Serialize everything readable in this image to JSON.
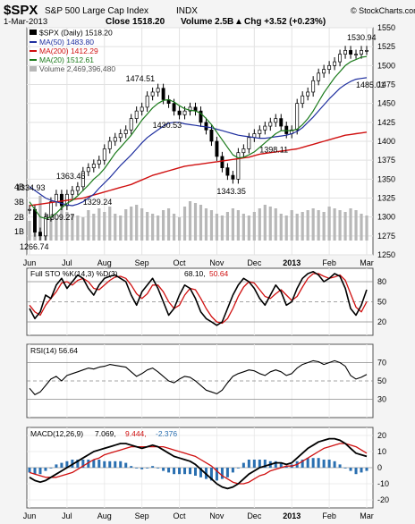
{
  "header": {
    "symbol": "$SPX",
    "name": "S&P 500 Large Cap Index",
    "exchange": "INDX",
    "date": "1-Mar-2013",
    "close": "Close 1518.20",
    "volume": "Volume 2.5B",
    "chg": "Chg +3.52 (+0.23%)",
    "chg_arrow": "▲",
    "watermark": "© StockCharts.com"
  },
  "legend": {
    "price": "$SPX (Daily) 1518.20",
    "ma50": "MA(50) 1483.80",
    "ma200": "MA(200) 1412.29",
    "ma20": "MA(20) 1512.61",
    "volume": "Volume 2,469,396,480"
  },
  "panels": {
    "sto_label": "Full STO %K(14,3) %D(3)",
    "sto_k": "68.10,",
    "sto_d": "50.64",
    "rsi_label": "RSI(14) 56.64",
    "macd_label": "MACD(12,26,9)",
    "macd_v": "7.069,",
    "macd_s": "9.444,",
    "macd_h": "-2.376"
  },
  "colors": {
    "price": "#000000",
    "ma50": "#1f2f9f",
    "ma200": "#d01010",
    "ma20": "#1a7a1a",
    "volume": "#b8b8b8",
    "sto_k": "#000000",
    "sto_d": "#d01010",
    "macd_hist": "#2a6fb0",
    "gap_up": "#2a6fb0"
  },
  "chart_data": [
    {
      "type": "line",
      "title": "$SPX (Daily) 1518.20",
      "x_ticks": [
        "Jun",
        "Jul",
        "Aug",
        "Sep",
        "Oct",
        "Nov",
        "Dec",
        "2013",
        "Feb",
        "Mar"
      ],
      "ylim": [
        1250,
        1550
      ],
      "y_ticks": [
        1250,
        1275,
        1300,
        1325,
        1350,
        1375,
        1400,
        1425,
        1450,
        1475,
        1500,
        1525,
        1550
      ],
      "volume_ticks": [
        "1B",
        "2B",
        "3B",
        "4B"
      ],
      "annotations": [
        {
          "text": "1266.74",
          "x": "Jun",
          "value": 1266.74
        },
        {
          "text": "1334.93",
          "x": "Jun",
          "value": 1334.93
        },
        {
          "text": "1309.27",
          "x": "Jul",
          "value": 1309.27
        },
        {
          "text": "1363.46",
          "x": "Jul",
          "value": 1363.46
        },
        {
          "text": "1329.24",
          "x": "Jul",
          "value": 1329.24
        },
        {
          "text": "1474.51",
          "x": "Sep",
          "value": 1474.51
        },
        {
          "text": "1430.53",
          "x": "Oct",
          "value": 1430.53
        },
        {
          "text": "1343.35",
          "x": "Nov",
          "value": 1343.35
        },
        {
          "text": "1398.11",
          "x": "Dec",
          "value": 1398.11
        },
        {
          "text": "1530.94",
          "x": "Feb",
          "value": 1530.94
        },
        {
          "text": "1485.01",
          "x": "Feb",
          "value": 1485.01
        }
      ],
      "series": [
        {
          "name": "$SPX",
          "values": [
            1310,
            1280,
            1275,
            1300,
            1320,
            1330,
            1315,
            1330,
            1335,
            1340,
            1360,
            1365,
            1370,
            1375,
            1390,
            1400,
            1405,
            1410,
            1415,
            1430,
            1440,
            1445,
            1460,
            1465,
            1470,
            1455,
            1450,
            1440,
            1435,
            1440,
            1445,
            1440,
            1425,
            1415,
            1400,
            1380,
            1365,
            1355,
            1350,
            1385,
            1390,
            1405,
            1410,
            1415,
            1420,
            1425,
            1430,
            1420,
            1410,
            1415,
            1450,
            1460,
            1465,
            1480,
            1490,
            1495,
            1500,
            1505,
            1515,
            1520,
            1515,
            1515,
            1520,
            1520
          ]
        },
        {
          "name": "MA(50)",
          "values": [
            1340,
            1335,
            1330,
            1325,
            1322,
            1320,
            1318,
            1316,
            1315,
            1317,
            1320,
            1325,
            1330,
            1338,
            1345,
            1352,
            1360,
            1368,
            1375,
            1382,
            1390,
            1398,
            1405,
            1410,
            1415,
            1420,
            1424,
            1425,
            1425,
            1423,
            1422,
            1421,
            1420,
            1419,
            1418,
            1416,
            1414,
            1412,
            1410,
            1408,
            1407,
            1406,
            1405,
            1404,
            1404,
            1405,
            1406,
            1407,
            1408,
            1410,
            1413,
            1418,
            1425,
            1432,
            1440,
            1448,
            1456,
            1463,
            1470,
            1475,
            1479,
            1482,
            1483,
            1484
          ]
        },
        {
          "name": "MA(200)",
          "values": [
            1315,
            1316,
            1317,
            1318,
            1319,
            1320,
            1321,
            1322,
            1323,
            1324,
            1325,
            1327,
            1329,
            1331,
            1333,
            1335,
            1337,
            1339,
            1341,
            1343,
            1346,
            1349,
            1352,
            1355,
            1357,
            1359,
            1361,
            1363,
            1365,
            1367,
            1368,
            1369,
            1370,
            1371,
            1372,
            1373,
            1374,
            1375,
            1376,
            1377,
            1378,
            1379,
            1381,
            1383,
            1384,
            1385,
            1386,
            1387,
            1388,
            1389,
            1390,
            1392,
            1394,
            1396,
            1398,
            1400,
            1402,
            1404,
            1406,
            1408,
            1409,
            1410,
            1411,
            1412
          ]
        },
        {
          "name": "MA(20)",
          "values": [
            1320,
            1310,
            1300,
            1298,
            1300,
            1305,
            1312,
            1318,
            1322,
            1328,
            1335,
            1342,
            1350,
            1356,
            1364,
            1374,
            1384,
            1392,
            1400,
            1408,
            1418,
            1428,
            1436,
            1444,
            1450,
            1454,
            1455,
            1452,
            1447,
            1443,
            1441,
            1440,
            1437,
            1430,
            1422,
            1412,
            1402,
            1392,
            1382,
            1378,
            1379,
            1382,
            1386,
            1392,
            1398,
            1404,
            1410,
            1414,
            1414,
            1414,
            1416,
            1422,
            1430,
            1440,
            1452,
            1464,
            1474,
            1484,
            1492,
            1500,
            1505,
            1508,
            1511,
            1512
          ]
        }
      ]
    },
    {
      "type": "line",
      "title": "Full STO %K(14,3) %D(3) 68.10, 50.64",
      "ylim": [
        0,
        100
      ],
      "y_ticks": [
        20,
        50,
        80
      ],
      "series": [
        {
          "name": "%K",
          "values": [
            40,
            25,
            35,
            60,
            55,
            75,
            85,
            70,
            80,
            90,
            85,
            70,
            60,
            75,
            85,
            88,
            90,
            85,
            80,
            60,
            45,
            65,
            75,
            85,
            70,
            50,
            30,
            40,
            60,
            75,
            70,
            55,
            35,
            25,
            20,
            15,
            20,
            40,
            60,
            75,
            85,
            80,
            70,
            55,
            45,
            60,
            75,
            65,
            45,
            50,
            70,
            85,
            92,
            95,
            90,
            80,
            85,
            92,
            88,
            70,
            40,
            30,
            45,
            68
          ]
        },
        {
          "name": "%D",
          "values": [
            45,
            35,
            30,
            45,
            55,
            65,
            78,
            80,
            75,
            82,
            85,
            80,
            70,
            68,
            75,
            82,
            87,
            88,
            85,
            75,
            62,
            55,
            62,
            75,
            75,
            65,
            50,
            40,
            45,
            60,
            70,
            68,
            55,
            40,
            28,
            20,
            18,
            25,
            40,
            58,
            72,
            80,
            78,
            68,
            58,
            55,
            62,
            68,
            60,
            52,
            58,
            72,
            85,
            92,
            92,
            88,
            85,
            87,
            90,
            82,
            62,
            42,
            35,
            50
          ]
        }
      ]
    },
    {
      "type": "line",
      "title": "RSI(14) 56.64",
      "ylim": [
        10,
        90
      ],
      "y_ticks": [
        30,
        50,
        70
      ],
      "series": [
        {
          "name": "RSI(14)",
          "values": [
            42,
            35,
            38,
            45,
            52,
            55,
            50,
            56,
            58,
            60,
            62,
            64,
            63,
            65,
            66,
            68,
            67,
            66,
            65,
            60,
            55,
            58,
            62,
            64,
            60,
            55,
            50,
            48,
            52,
            55,
            54,
            50,
            45,
            40,
            38,
            36,
            40,
            48,
            55,
            58,
            60,
            62,
            61,
            58,
            56,
            60,
            62,
            60,
            56,
            58,
            64,
            68,
            70,
            72,
            71,
            68,
            70,
            72,
            70,
            66,
            56,
            52,
            54,
            57
          ]
        }
      ]
    },
    {
      "type": "line",
      "title": "MACD(12,26,9) 7.069, 9.444, -2.376",
      "ylim": [
        -25,
        25
      ],
      "y_ticks": [
        -20,
        -10,
        0,
        10,
        20
      ],
      "series": [
        {
          "name": "MACD",
          "values": [
            -6,
            -8,
            -9,
            -8,
            -6,
            -4,
            -2,
            0,
            2,
            4,
            6,
            8,
            10,
            11,
            12,
            13,
            14,
            15,
            15,
            14,
            13,
            12,
            13,
            14,
            13,
            11,
            9,
            7,
            6,
            5,
            4,
            2,
            -1,
            -4,
            -7,
            -10,
            -12,
            -13,
            -12,
            -10,
            -7,
            -4,
            -2,
            0,
            1,
            2,
            3,
            3,
            2,
            3,
            6,
            9,
            12,
            14,
            16,
            17,
            18,
            18,
            17,
            15,
            12,
            9,
            8,
            7
          ]
        },
        {
          "name": "Signal",
          "values": [
            -3,
            -4,
            -5,
            -6,
            -6,
            -6,
            -5,
            -4,
            -3,
            -1,
            1,
            3,
            5,
            6,
            8,
            9,
            10,
            11,
            12,
            13,
            13,
            13,
            13,
            13,
            13,
            13,
            12,
            11,
            10,
            9,
            8,
            7,
            5,
            3,
            1,
            -2,
            -5,
            -7,
            -9,
            -10,
            -10,
            -9,
            -7,
            -5,
            -4,
            -2,
            -1,
            0,
            1,
            1,
            2,
            4,
            6,
            8,
            10,
            12,
            13,
            14,
            15,
            15,
            14,
            13,
            11,
            9
          ]
        }
      ]
    }
  ]
}
